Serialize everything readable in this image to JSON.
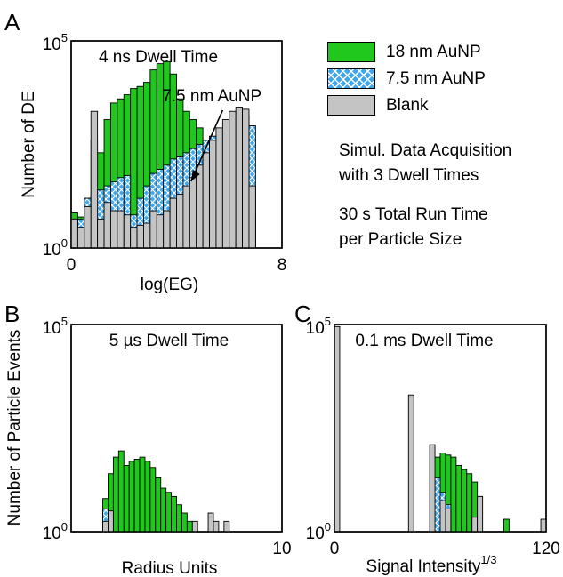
{
  "colors": {
    "green": "#20c81e",
    "blue": "#3ea8ee",
    "blue_hatch": "#ffffff",
    "gray": "#c4c4c4",
    "edge": "#000000"
  },
  "legend": [
    {
      "label": "18 nm AuNP",
      "color": "#20c81e",
      "pattern": "solid"
    },
    {
      "label": "7.5 nm AuNP",
      "color": "#3ea8ee",
      "pattern": "crosshatch"
    },
    {
      "label": "Blank",
      "color": "#c4c4c4",
      "pattern": "solid"
    }
  ],
  "notes": {
    "line1": "Simul. Data Acquisition",
    "line2": "with 3 Dwell Times",
    "line3": "30 s Total Run Time",
    "line4": "per Particle Size"
  },
  "shared_ylabel": "Number of Particle Events",
  "chart_data": [
    {
      "panel_letter": "A",
      "type": "bar",
      "title": "4 ns Dwell Time",
      "xlabel": "log(EG)",
      "ylabel": "Number of DE",
      "xlim": [
        0,
        8
      ],
      "ylim_exp": [
        0,
        5
      ],
      "x_ticks": [
        "0",
        "8"
      ],
      "y_ticks": [
        "10⁰",
        "10⁵"
      ],
      "y_scale": "log",
      "bin_width": 0.25,
      "bins_x0": [
        0.0,
        0.25,
        0.5,
        0.75,
        1.0,
        1.25,
        1.5,
        1.75,
        2.0,
        2.25,
        2.5,
        2.75,
        3.0,
        3.25,
        3.5,
        3.75,
        4.0,
        4.25,
        4.5,
        4.75,
        5.0,
        5.25,
        5.5,
        5.75,
        6.0,
        6.25,
        6.5,
        6.75
      ],
      "annotation": {
        "text": "7.5 nm AuNP"
      },
      "series": [
        {
          "name": "18 nm AuNP",
          "key": "green",
          "values": [
            0.85,
            0.75,
            1.2,
            2.6,
            2.3,
            3.1,
            3.5,
            3.6,
            3.7,
            3.85,
            3.9,
            4.0,
            4.3,
            4.45,
            4.5,
            4.2,
            3.6,
            3.3,
            3.1,
            2.9,
            2.6,
            2.2,
            1.9,
            1.6,
            1.3,
            1.1,
            0.95,
            0.8
          ]
        },
        {
          "name": "7.5 nm AuNP",
          "key": "blue",
          "values": [
            0.7,
            0.7,
            1.2,
            1.3,
            1.4,
            1.5,
            1.6,
            1.7,
            1.75,
            0.8,
            1.2,
            1.5,
            1.8,
            1.9,
            2.0,
            2.15,
            2.2,
            2.3,
            2.4,
            2.5,
            2.6,
            2.7,
            2.8,
            2.9,
            3.0,
            3.1,
            3.2,
            2.95
          ]
        },
        {
          "name": "Blank",
          "key": "gray",
          "values": [
            0.7,
            0.5,
            1.0,
            3.3,
            0.7,
            1.1,
            0.9,
            0.9,
            0.8,
            0.5,
            0.55,
            0.6,
            0.9,
            0.8,
            0.9,
            1.2,
            1.3,
            1.5,
            1.7,
            2.0,
            2.3,
            2.6,
            2.9,
            3.1,
            3.3,
            3.4,
            3.35,
            1.5
          ]
        }
      ]
    },
    {
      "panel_letter": "B",
      "type": "bar",
      "title": "5 µs Dwell Time",
      "xlabel": "Radius Units",
      "ylabel": "",
      "xlim": [
        0,
        10
      ],
      "ylim_exp": [
        0,
        5
      ],
      "x_ticks": [
        "10"
      ],
      "y_ticks": [
        "10⁰",
        "10⁵"
      ],
      "y_scale": "log",
      "bin_width": 0.25,
      "bins_x0": [
        1.5,
        1.75,
        2.0,
        2.25,
        2.5,
        2.75,
        3.0,
        3.25,
        3.5,
        3.75,
        4.0,
        4.25,
        4.5,
        4.75,
        5.0,
        5.25,
        5.5,
        5.75,
        6.0,
        6.25,
        6.5,
        6.75,
        7.0,
        7.25
      ],
      "series": [
        {
          "name": "18 nm AuNP",
          "key": "green",
          "values": [
            0.8,
            1.4,
            1.8,
            1.95,
            1.6,
            1.7,
            1.75,
            1.8,
            1.7,
            1.55,
            1.3,
            1.05,
            0.95,
            0.85,
            0.65,
            0.45,
            0.25,
            0,
            0,
            0,
            0,
            0,
            0,
            0
          ]
        },
        {
          "name": "7.5 nm AuNP",
          "key": "blue",
          "values": [
            0.55,
            0.35,
            0,
            0,
            0,
            0,
            0,
            0,
            0,
            0,
            0,
            0,
            0,
            0,
            0,
            0,
            0,
            0,
            0,
            0,
            0,
            0,
            0,
            0
          ]
        },
        {
          "name": "Blank",
          "key": "gray",
          "values": [
            0.25,
            0.5,
            0,
            0,
            0,
            0,
            0,
            0,
            0,
            0,
            0,
            0,
            0,
            0,
            0,
            0,
            0,
            0.25,
            0,
            0,
            0.45,
            0.25,
            0,
            0.25
          ]
        }
      ]
    },
    {
      "panel_letter": "C",
      "type": "bar",
      "title": "0.1 ms Dwell Time",
      "xlabel": "Signal Intensity^1/3",
      "ylabel": "",
      "xlim": [
        0,
        120
      ],
      "ylim_exp": [
        0,
        5
      ],
      "x_ticks": [
        "0",
        "120"
      ],
      "y_ticks": [
        "10⁰",
        "10⁵"
      ],
      "y_scale": "log",
      "bin_width": 3,
      "bins_x0": [
        0,
        3,
        6,
        9,
        12,
        15,
        18,
        21,
        24,
        27,
        30,
        33,
        36,
        39,
        42,
        45,
        48,
        51,
        54,
        57,
        60,
        63,
        66,
        69,
        72,
        75,
        78,
        81,
        84,
        87,
        90,
        93,
        96,
        99,
        102,
        105,
        108,
        111,
        114,
        117
      ],
      "series": [
        {
          "name": "18 nm AuNP",
          "key": "green",
          "values": [
            0,
            0,
            0,
            0,
            0,
            0,
            0,
            0,
            0,
            0,
            0,
            0,
            0,
            0,
            0,
            0,
            0,
            0,
            0,
            1.8,
            1.9,
            1.85,
            1.8,
            1.6,
            1.5,
            1.4,
            1.2,
            0.85,
            0,
            0,
            0,
            0,
            0.3,
            0,
            0,
            0,
            0,
            0,
            0,
            0
          ]
        },
        {
          "name": "7.5 nm AuNP",
          "key": "blue",
          "values": [
            0,
            0,
            0,
            0,
            0,
            0,
            0,
            0,
            0,
            0,
            0,
            0,
            0,
            0,
            0,
            0,
            0,
            0,
            0,
            1.3,
            0.95,
            0.65,
            0,
            0,
            0,
            0,
            0,
            0,
            0,
            0,
            0,
            0,
            0,
            0,
            0,
            0,
            0,
            0,
            0,
            0
          ]
        },
        {
          "name": "Blank",
          "key": "gray",
          "values": [
            4.95,
            0,
            0,
            0,
            0,
            0,
            0,
            0,
            0,
            0,
            0,
            0,
            0,
            0,
            3.3,
            0,
            0,
            0,
            2.1,
            0,
            0.75,
            0.55,
            0,
            0,
            0,
            0,
            0.35,
            0.85,
            0,
            0,
            0,
            0,
            0,
            0,
            0,
            0,
            0,
            0,
            0,
            0.3
          ]
        }
      ]
    }
  ]
}
